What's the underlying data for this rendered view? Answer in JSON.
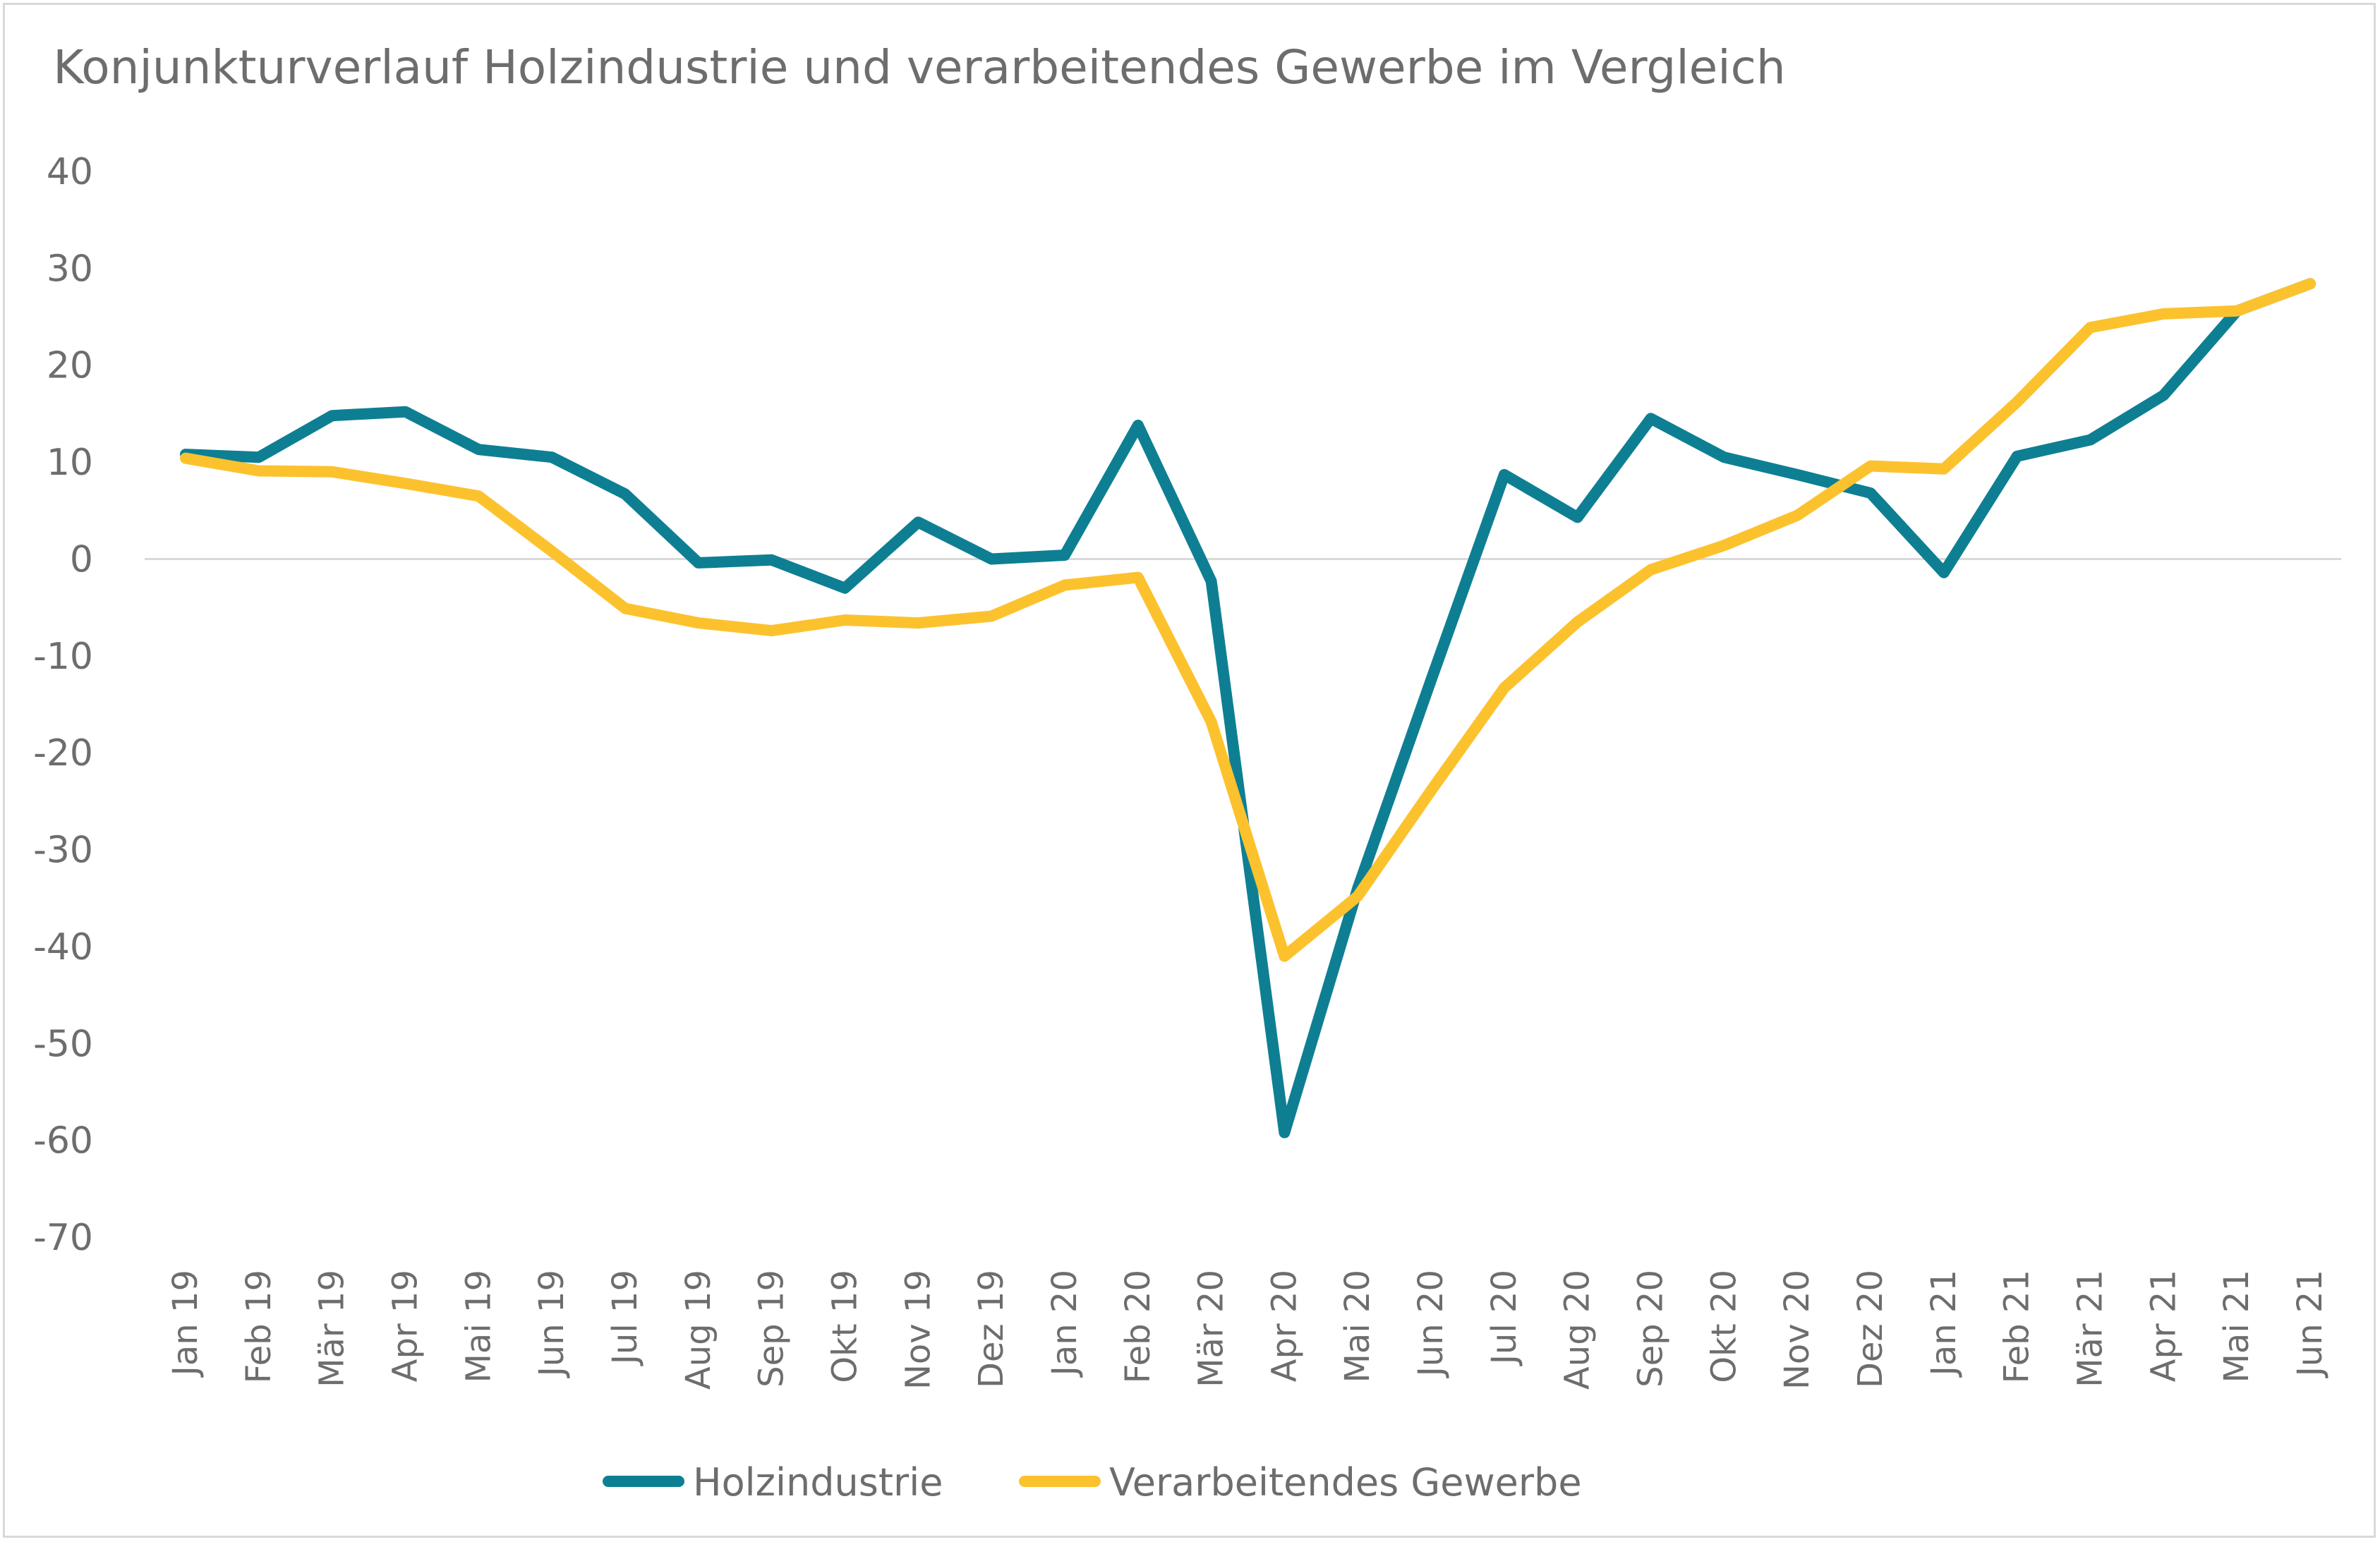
{
  "chart_data": {
    "type": "line",
    "title": "Konjunkturverlauf Holzindustrie und verarbeitendes Gewerbe im Vergleich",
    "xlabel": "",
    "ylabel": "",
    "ylim": [
      -70,
      40
    ],
    "yticks": [
      "40",
      "30",
      "20",
      "10",
      "0",
      "-10",
      "-20",
      "-30",
      "-40",
      "-50",
      "-60",
      "-70"
    ],
    "ytick_values": [
      40,
      30,
      20,
      10,
      0,
      -10,
      -20,
      -30,
      -40,
      -50,
      -60,
      -70
    ],
    "grid": false,
    "zero_line": true,
    "legend_position": "bottom",
    "categories": [
      "Jan 19",
      "Feb 19",
      "Mär 19",
      "Apr 19",
      "Mai 19",
      "Jun 19",
      "Jul 19",
      "Aug 19",
      "Sep 19",
      "Okt 19",
      "Nov 19",
      "Dez 19",
      "Jan 20",
      "Feb 20",
      "Mär 20",
      "Apr 20",
      "Mai 20",
      "Jun 20",
      "Jul 20",
      "Aug 20",
      "Sep 20",
      "Okt 20",
      "Nov 20",
      "Dez 20",
      "Jan 21",
      "Feb 21",
      "Mär 21",
      "Apr 21",
      "Mai 21",
      "Jun 21"
    ],
    "series": [
      {
        "name": "Holzindustrie",
        "color": "#0e7f93",
        "values": [
          10.8,
          10.5,
          14.8,
          15.2,
          11.3,
          10.5,
          6.7,
          -0.4,
          -0.1,
          -3.0,
          3.8,
          0.0,
          0.4,
          13.8,
          -2.3,
          -59.2,
          -34.0,
          -12.5,
          8.7,
          4.3,
          14.5,
          10.5,
          8.7,
          6.8,
          -1.4,
          10.6,
          12.3,
          16.9,
          25.6,
          28.4
        ]
      },
      {
        "name": "Verarbeitendes Gewerbe",
        "color": "#fcc22e",
        "values": [
          10.4,
          9.1,
          9.0,
          7.8,
          6.5,
          0.8,
          -5.1,
          -6.6,
          -7.4,
          -6.3,
          -6.6,
          -5.9,
          -2.7,
          -1.9,
          -16.8,
          -41.0,
          -34.8,
          -23.9,
          -13.3,
          -6.5,
          -1.1,
          1.4,
          4.5,
          9.6,
          9.3,
          16.2,
          23.9,
          25.3,
          25.6,
          28.4
        ]
      }
    ]
  }
}
